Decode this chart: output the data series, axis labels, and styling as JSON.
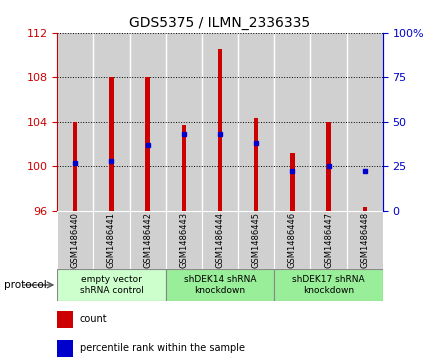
{
  "title": "GDS5375 / ILMN_2336335",
  "samples": [
    "GSM1486440",
    "GSM1486441",
    "GSM1486442",
    "GSM1486443",
    "GSM1486444",
    "GSM1486445",
    "GSM1486446",
    "GSM1486447",
    "GSM1486448"
  ],
  "bar_bottom": [
    96,
    96,
    96,
    96,
    96,
    96,
    96,
    96,
    96
  ],
  "bar_top": [
    104.0,
    108.0,
    108.0,
    103.7,
    110.5,
    104.3,
    101.2,
    104.0,
    96.3
  ],
  "percentile": [
    27,
    28,
    37,
    43,
    43,
    38,
    22,
    25,
    22
  ],
  "ylim_left": [
    96,
    112
  ],
  "ylim_right": [
    0,
    100
  ],
  "yticks_left": [
    96,
    100,
    104,
    108,
    112
  ],
  "yticks_right": [
    0,
    25,
    50,
    75,
    100
  ],
  "ytick_labels_right": [
    "0",
    "25",
    "50",
    "75",
    "100%"
  ],
  "bar_color": "#cc0000",
  "marker_color": "#0000cc",
  "cell_bg": "#d0d0d0",
  "groups": [
    {
      "label": "empty vector\nshRNA control",
      "start": 0,
      "end": 3,
      "color": "#ccffcc"
    },
    {
      "label": "shDEK14 shRNA\nknockdown",
      "start": 3,
      "end": 6,
      "color": "#99ee99"
    },
    {
      "label": "shDEK17 shRNA\nknockdown",
      "start": 6,
      "end": 9,
      "color": "#99ee99"
    }
  ],
  "legend_count_color": "#cc0000",
  "legend_percentile_color": "#0000cc",
  "protocol_label": "protocol",
  "title_fontsize": 10,
  "axis_label_color_left": "#cc0000",
  "axis_label_color_right": "#0000cc"
}
